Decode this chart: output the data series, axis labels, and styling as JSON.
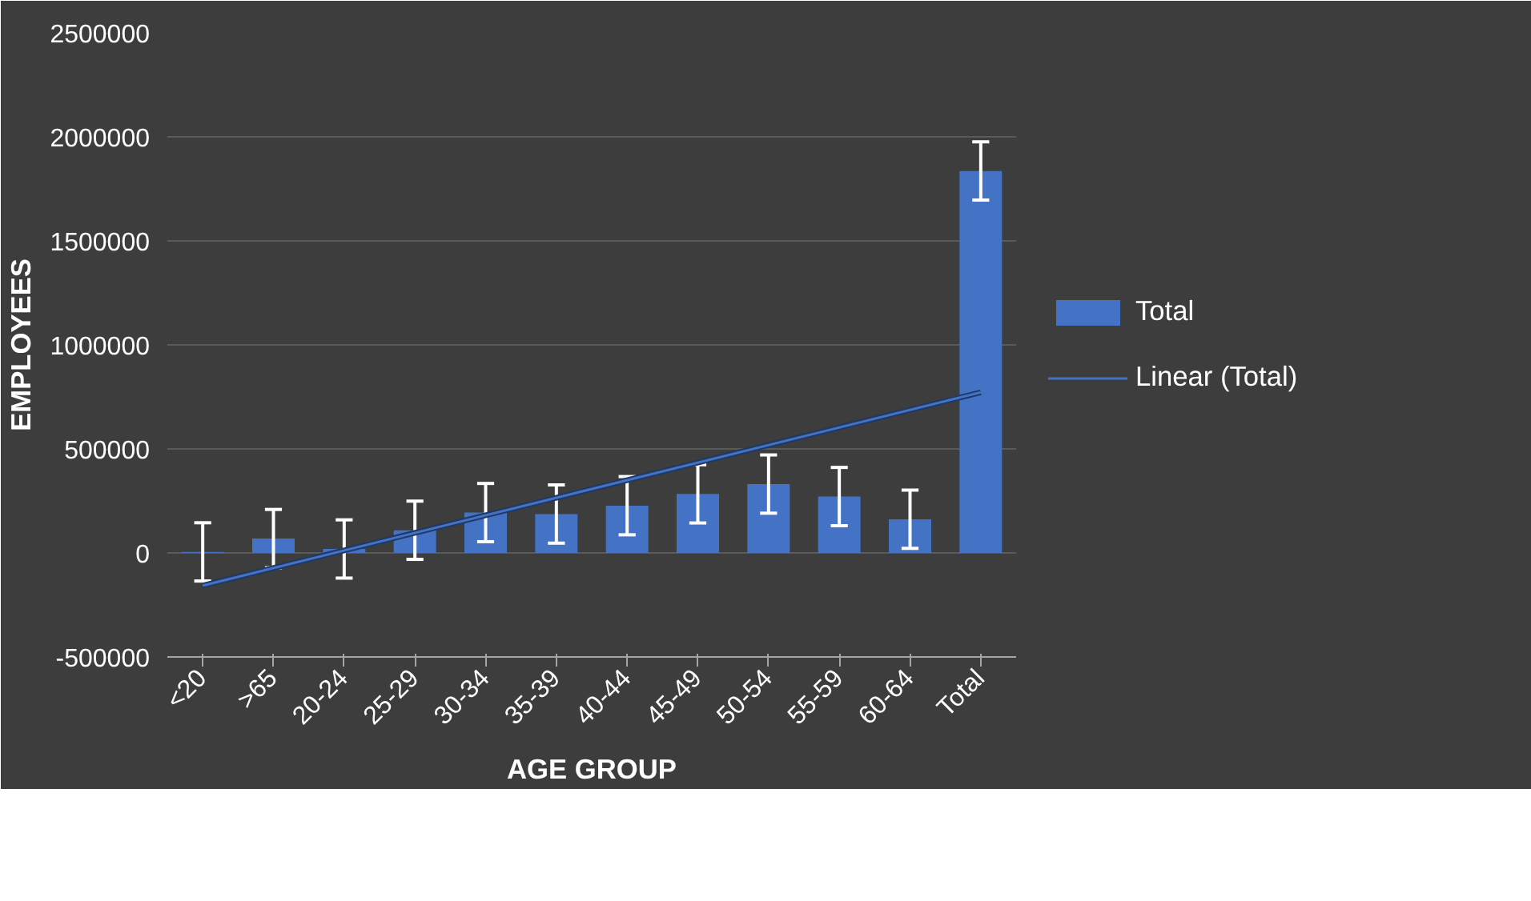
{
  "chart_data": {
    "type": "bar",
    "xlabel": "AGE GROUP",
    "ylabel": "EMPLOYEES",
    "categories": [
      "<20",
      ">65",
      "20-24",
      "25-29",
      "30-34",
      "35-39",
      "40-44",
      "45-49",
      "50-54",
      "55-59",
      "60-64",
      "Total"
    ],
    "series": [
      {
        "name": "Total",
        "color": "#4472c4",
        "values": [
          5000,
          69000,
          19000,
          109000,
          194000,
          187000,
          227000,
          284000,
          331000,
          271000,
          162000,
          1836000
        ],
        "errors": [
          140000,
          140000,
          140000,
          140000,
          140000,
          140000,
          140000,
          140000,
          140000,
          140000,
          140000,
          140000
        ]
      },
      {
        "name": "Linear (Total)",
        "type": "line",
        "color": "#4472c4",
        "x": [
          "<20",
          "Total"
        ],
        "values": [
          -157000,
          772000
        ]
      }
    ],
    "ylim": [
      -500000,
      2500000
    ],
    "yticks": [
      -500000,
      0,
      500000,
      1000000,
      1500000,
      2000000,
      2500000
    ],
    "grid": "y",
    "legend": "right"
  }
}
